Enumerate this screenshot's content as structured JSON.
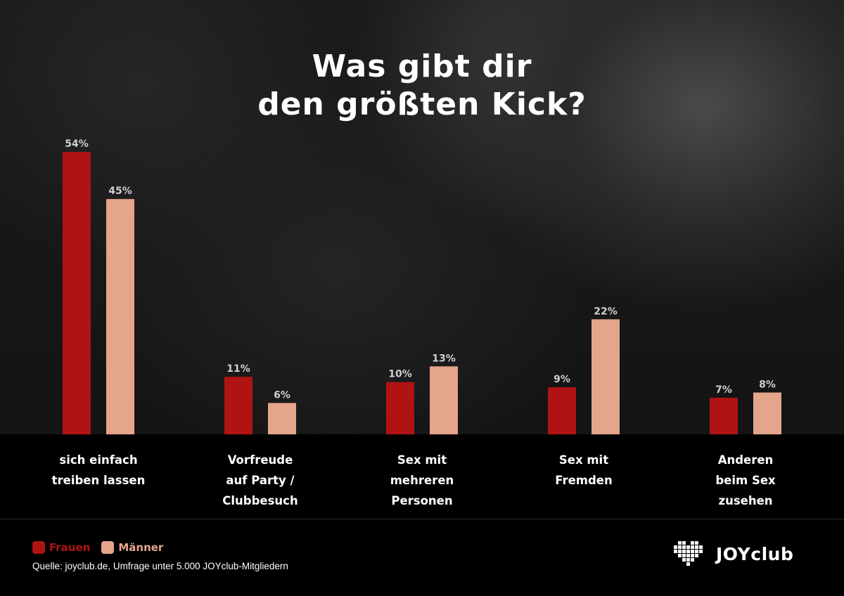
{
  "colors": {
    "frauen": "#b01313",
    "maenner": "#e4a58b",
    "value_label": "#cfcfcf"
  },
  "chart_data": {
    "type": "bar",
    "title": "Was gibt dir\nden größten Kick?",
    "categories": [
      "sich einfach\ntreiben lassen",
      "Vorfreude\nauf Party /\nClubbesuch",
      "Sex mit\nmehreren\nPersonen",
      "Sex mit\nFremden",
      "Anderen\nbeim Sex\nzusehen"
    ],
    "series": [
      {
        "name": "Frauen",
        "values": [
          54,
          11,
          10,
          9,
          7
        ],
        "labels": [
          "54%",
          "11%",
          "10%",
          "9%",
          "7%"
        ]
      },
      {
        "name": "Männer",
        "values": [
          45,
          6,
          13,
          22,
          8
        ],
        "labels": [
          "45%",
          "6%",
          "13%",
          "22%",
          "8%"
        ]
      }
    ],
    "unit": "%",
    "ylim": [
      0,
      100
    ],
    "legend_position": "bottom-left",
    "grid": false
  },
  "footer": {
    "source": "Quelle: joyclub.de, Umfrage unter 5.000 JOYclub-Mitgliedern",
    "logo_text": "JOYclub",
    "logo_icon": "heart-pixel-icon"
  }
}
